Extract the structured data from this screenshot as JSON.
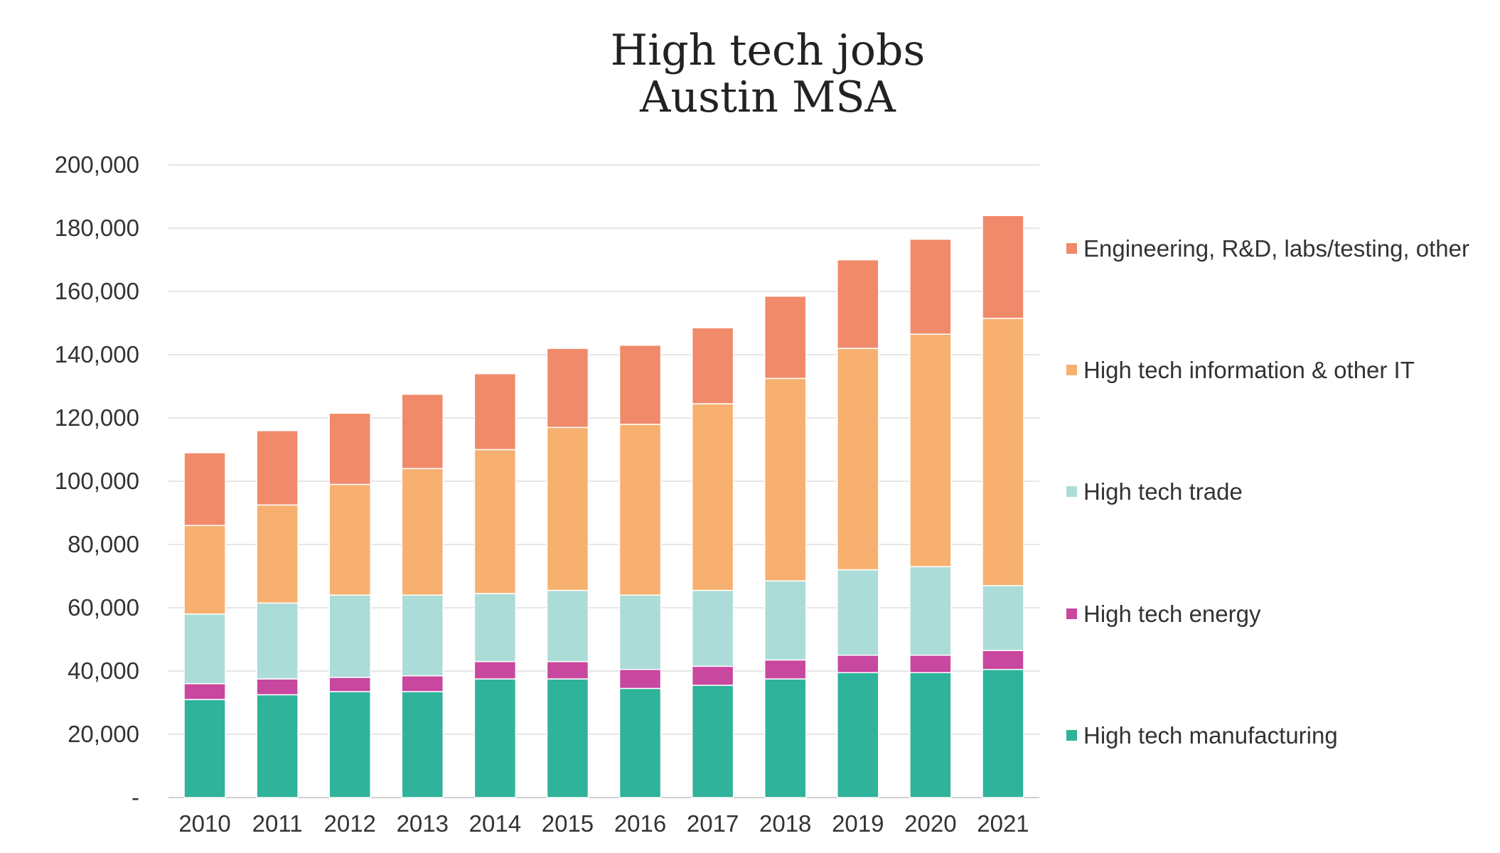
{
  "chart_data": {
    "type": "bar",
    "stacked": true,
    "title": [
      "High tech jobs",
      "Austin MSA"
    ],
    "categories": [
      "2010",
      "2011",
      "2012",
      "2013",
      "2014",
      "2015",
      "2016",
      "2017",
      "2018",
      "2019",
      "2020",
      "2021"
    ],
    "ylim": [
      0,
      200000
    ],
    "yticks": [
      0,
      20000,
      40000,
      60000,
      80000,
      100000,
      120000,
      140000,
      160000,
      180000,
      200000
    ],
    "ytick_labels": [
      "-",
      "20,000",
      "40,000",
      "60,000",
      "80,000",
      "100,000",
      "120,000",
      "140,000",
      "160,000",
      "180,000",
      "200,000"
    ],
    "grid": true,
    "legend_position": "right",
    "series": [
      {
        "name": "High tech manufacturing",
        "color": "#2fb39b",
        "values": [
          31000,
          32500,
          33500,
          33500,
          37500,
          37500,
          34500,
          35500,
          37500,
          39500,
          39500,
          40500
        ]
      },
      {
        "name": "High tech energy",
        "color": "#c8479f",
        "values": [
          5000,
          5000,
          4500,
          5000,
          5500,
          5500,
          6000,
          6000,
          6000,
          5500,
          5500,
          6000
        ]
      },
      {
        "name": "High tech trade",
        "color": "#acdcd8",
        "values": [
          22000,
          24000,
          26000,
          25500,
          21500,
          22500,
          23500,
          24000,
          25000,
          27000,
          28000,
          20500
        ]
      },
      {
        "name": "High tech information & other IT",
        "color": "#f7b06f",
        "values": [
          28000,
          31000,
          35000,
          40000,
          45500,
          51500,
          54000,
          59000,
          64000,
          70000,
          73500,
          84500
        ]
      },
      {
        "name": "Engineering, R&D, labs/testing, other",
        "color": "#f08a6a",
        "values": [
          23000,
          23500,
          22500,
          23500,
          24000,
          25000,
          25000,
          24000,
          26000,
          28000,
          30000,
          32500
        ]
      }
    ],
    "legend_order": [
      "Engineering, R&D, labs/testing, other",
      "High tech information & other IT",
      "High tech trade",
      "High tech energy",
      "High tech manufacturing"
    ]
  }
}
